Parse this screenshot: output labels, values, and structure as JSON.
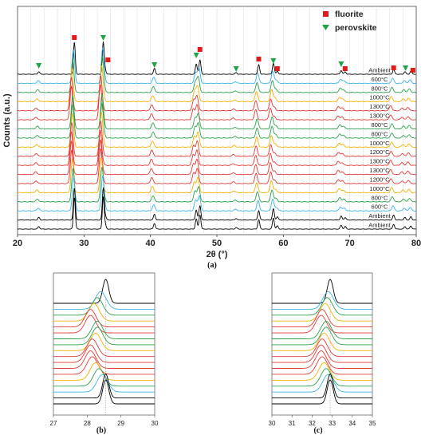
{
  "figure": {
    "caption_a": "(a)",
    "caption_b": "(b)",
    "caption_c": "(c)"
  },
  "colors": {
    "ambient": "#000000",
    "600": "#3bb3e6",
    "800": "#2aa14a",
    "1000": "#f5b000",
    "1200": "#e53935",
    "1300": "#e53935",
    "fluorite_marker": "#e31a1c",
    "perovskite_marker": "#21a34a",
    "grid": "#d8d8d8"
  },
  "chart_data": [
    {
      "panel": "a",
      "type": "line",
      "xlabel": "2θ (°)",
      "ylabel": "Counts (a.u.)",
      "xlim": [
        20,
        80
      ],
      "xticks": [
        20,
        30,
        40,
        50,
        60,
        70,
        80
      ],
      "grid": "vertical",
      "legend": {
        "position": "top-right",
        "entries": [
          {
            "label": "fluorite",
            "marker": "square",
            "color": "#e31a1c"
          },
          {
            "label": "perovskite",
            "marker": "triangle-down",
            "color": "#21a34a"
          }
        ]
      },
      "stack_labels": [
        "Ambient",
        "600°C",
        "800°C",
        "1000°C",
        "1300°C",
        "1300°C",
        "800°C",
        "800°C",
        "1000°C",
        "1200°C",
        "1300°C",
        "1300°C",
        "1200°C",
        "1000°C",
        "800°C",
        "600°C",
        "Ambient",
        "Ambient"
      ],
      "series": [
        {
          "label": "Ambient",
          "color_key": "ambient",
          "fluorite_shift": 0.0,
          "perov_shift": 0.0,
          "sharp": true
        },
        {
          "label": "600°C",
          "color_key": "600",
          "fluorite_shift": -0.15,
          "perov_shift": -0.1
        },
        {
          "label": "800°C",
          "color_key": "800",
          "fluorite_shift": -0.25,
          "perov_shift": -0.15
        },
        {
          "label": "1000°C",
          "color_key": "1000",
          "fluorite_shift": -0.35,
          "perov_shift": -0.25
        },
        {
          "label": "1300°C",
          "color_key": "1300",
          "fluorite_shift": -0.45,
          "perov_shift": -0.4
        },
        {
          "label": "1300°C",
          "color_key": "1300",
          "fluorite_shift": -0.45,
          "perov_shift": -0.45
        },
        {
          "label": "800°C",
          "color_key": "800",
          "fluorite_shift": -0.25,
          "perov_shift": -0.2
        },
        {
          "label": "800°C",
          "color_key": "800",
          "fluorite_shift": -0.25,
          "perov_shift": -0.2
        },
        {
          "label": "1000°C",
          "color_key": "1000",
          "fluorite_shift": -0.3,
          "perov_shift": -0.3
        },
        {
          "label": "1200°C",
          "color_key": "1200",
          "fluorite_shift": -0.4,
          "perov_shift": -0.4
        },
        {
          "label": "1300°C",
          "color_key": "1300",
          "fluorite_shift": -0.45,
          "perov_shift": -0.45
        },
        {
          "label": "1300°C",
          "color_key": "1300",
          "fluorite_shift": -0.45,
          "perov_shift": -0.45
        },
        {
          "label": "1200°C",
          "color_key": "1200",
          "fluorite_shift": -0.4,
          "perov_shift": -0.4
        },
        {
          "label": "1000°C",
          "color_key": "1000",
          "fluorite_shift": -0.3,
          "perov_shift": -0.3
        },
        {
          "label": "800°C",
          "color_key": "800",
          "fluorite_shift": -0.2,
          "perov_shift": -0.2
        },
        {
          "label": "600°C",
          "color_key": "600",
          "fluorite_shift": -0.1,
          "perov_shift": -0.1
        },
        {
          "label": "Ambient",
          "color_key": "ambient",
          "fluorite_shift": 0.0,
          "perov_shift": 0.0,
          "sharp": true
        },
        {
          "label": "Ambient",
          "color_key": "ambient",
          "fluorite_shift": 0.0,
          "perov_shift": 0.0,
          "sharp": true
        }
      ],
      "peaks_fluorite": [
        {
          "x": 28.55,
          "h": 1.0
        },
        {
          "x": 33.2,
          "h": 0.12
        },
        {
          "x": 47.45,
          "h": 0.45
        },
        {
          "x": 56.3,
          "h": 0.3
        },
        {
          "x": 59.1,
          "h": 0.1
        },
        {
          "x": 69.3,
          "h": 0.08
        },
        {
          "x": 76.6,
          "h": 0.15
        },
        {
          "x": 79.2,
          "h": 0.1
        }
      ],
      "peaks_perovskite": [
        {
          "x": 23.2,
          "h": 0.08
        },
        {
          "x": 32.9,
          "h": 1.0
        },
        {
          "x": 40.6,
          "h": 0.18
        },
        {
          "x": 46.9,
          "h": 0.32
        },
        {
          "x": 52.9,
          "h": 0.05
        },
        {
          "x": 58.5,
          "h": 0.35
        },
        {
          "x": 68.7,
          "h": 0.12
        },
        {
          "x": 78.3,
          "h": 0.08
        }
      ],
      "markers_fluorite": [
        28.55,
        33.6,
        47.45,
        56.3,
        59.1,
        69.3,
        76.6,
        79.5
      ],
      "markers_perovskite": [
        23.2,
        32.9,
        40.6,
        46.9,
        52.9,
        58.5,
        68.7,
        78.4
      ]
    },
    {
      "panel": "b",
      "type": "line",
      "xlim": [
        27,
        30
      ],
      "xticks": [
        27,
        28,
        29,
        30
      ],
      "peak": "fluorite",
      "center": 28.55
    },
    {
      "panel": "c",
      "type": "line",
      "xlim": [
        30,
        35
      ],
      "xticks": [
        30,
        31,
        32,
        33,
        34,
        35
      ],
      "peak": "perovskite",
      "center": 32.9
    }
  ]
}
